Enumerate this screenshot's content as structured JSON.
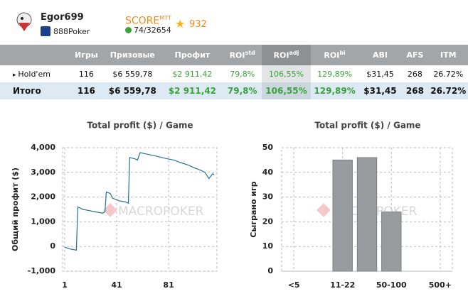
{
  "header": {
    "name": "Egor699",
    "site": "888Poker",
    "score_label": "SCORE",
    "score_sup": "MTT",
    "rank": "74/32654",
    "stars": "932"
  },
  "table": {
    "columns": [
      {
        "label": "Игры"
      },
      {
        "label": "Призовые"
      },
      {
        "label": "Профит"
      },
      {
        "label": "ROI",
        "sup": "std"
      },
      {
        "label": "ROI",
        "sup": "adj"
      },
      {
        "label": "ROI",
        "sup": "bi"
      },
      {
        "label": "ABI"
      },
      {
        "label": "AFS"
      },
      {
        "label": "ITM"
      }
    ],
    "rows": [
      [
        "Hold'em",
        "116",
        "$6 559,78",
        "$2 911,42",
        "79,8%",
        "106,55%",
        "129,89%",
        "$31,45",
        "268",
        "26.72%"
      ],
      [
        "Итого",
        "116",
        "$6 559,78",
        "$2 911,42",
        "79,8%",
        "106,55%",
        "129,89%",
        "$31,45",
        "268",
        "26.72%"
      ]
    ]
  },
  "watermark": "MACROPOKER",
  "chart_data": [
    {
      "type": "line",
      "title": "Total profit ($) / Game",
      "y_label": "Общий профит ($)",
      "color": "#2a6f97",
      "grid": true,
      "x": [
        1,
        5,
        10,
        11,
        15,
        20,
        25,
        30,
        32,
        33,
        36,
        38,
        43,
        48,
        50,
        51,
        55,
        57,
        59,
        63,
        68,
        72,
        76,
        80,
        85,
        90,
        96,
        100,
        105,
        109,
        112,
        115,
        116
      ],
      "values": [
        -30,
        -100,
        -150,
        1600,
        1500,
        1450,
        1400,
        1350,
        1400,
        2200,
        2150,
        1950,
        1850,
        1800,
        1750,
        3600,
        3550,
        3500,
        3800,
        3750,
        3700,
        3650,
        3600,
        3550,
        3500,
        3400,
        3300,
        3200,
        3100,
        3000,
        2750,
        2950,
        2900
      ],
      "xlim": [
        1,
        116
      ],
      "xticks": [
        1,
        41,
        81
      ],
      "ylim": [
        -1000,
        4000
      ],
      "yticks": [
        {
          "value": -1000,
          "label": "-1,000"
        },
        0,
        {
          "value": 1000,
          "label": "1,000"
        },
        {
          "value": 2000,
          "label": "2,000"
        },
        {
          "value": 3000,
          "label": "3,000"
        },
        {
          "value": 4000,
          "label": "4,000"
        }
      ]
    },
    {
      "type": "bar",
      "title": "Total profit ($) / Game",
      "y_label": "Сыграно игр",
      "color": "#999c9e",
      "grid": true,
      "categories": [
        "<5",
        null,
        "11-22",
        null,
        "50-100",
        null,
        "500+"
      ],
      "values": [
        0,
        0,
        45,
        46,
        24,
        0,
        0
      ],
      "ylim": [
        0,
        50
      ],
      "yticks": [
        0,
        10,
        20,
        30,
        40,
        50
      ]
    }
  ]
}
